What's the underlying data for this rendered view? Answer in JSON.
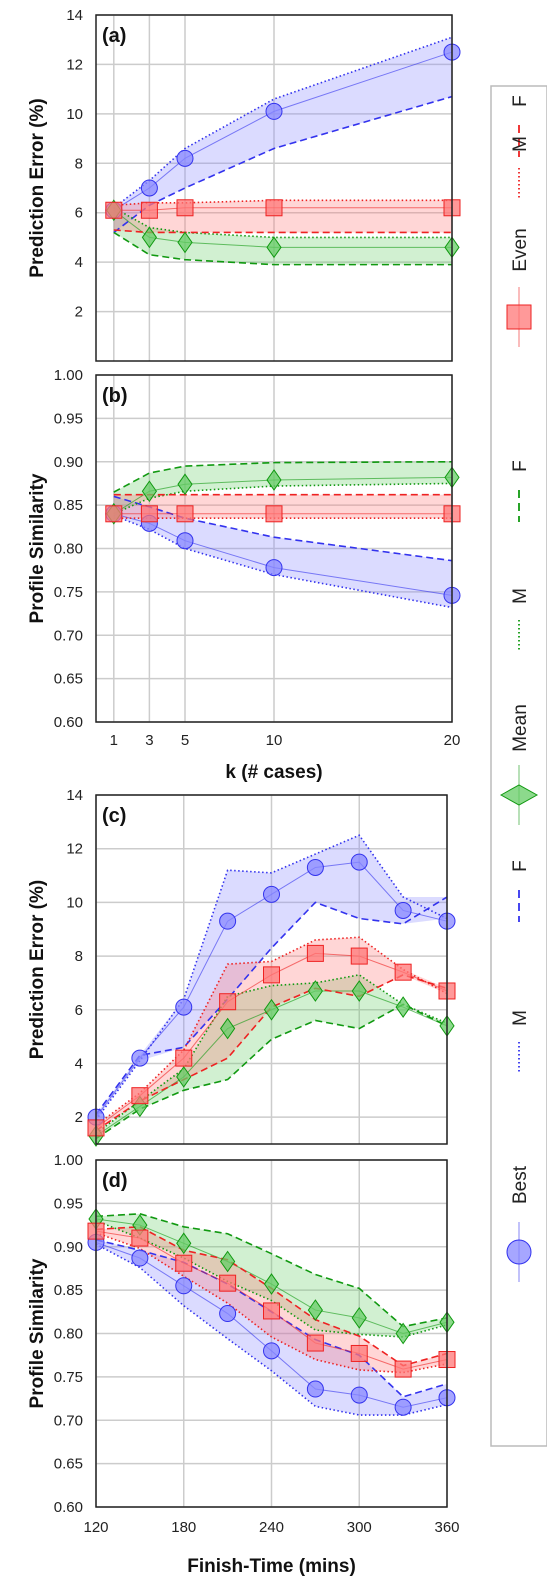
{
  "colors": {
    "best": "#3333ee",
    "best_fill": "#8888ff",
    "mean": "#119911",
    "mean_fill": "#66cc66",
    "even": "#ee2222",
    "even_fill": "#ff7777",
    "grid": "#cccccc",
    "axis": "#222222"
  },
  "legend": {
    "placement": "right-vertical",
    "entries": [
      {
        "key": "F",
        "style": "dashed",
        "group": "even"
      },
      {
        "key": "M",
        "style": "dotted",
        "group": "even"
      },
      {
        "key": "Even",
        "style": "square",
        "group": "even"
      },
      {
        "key": "F",
        "style": "dashed",
        "group": "mean"
      },
      {
        "key": "M",
        "style": "dotted",
        "group": "mean"
      },
      {
        "key": "Mean",
        "style": "diamond",
        "group": "mean"
      },
      {
        "key": "F",
        "style": "dashed",
        "group": "best"
      },
      {
        "key": "M",
        "style": "dotted",
        "group": "best"
      },
      {
        "key": "Best",
        "style": "circle",
        "group": "best"
      }
    ]
  },
  "chart_data": [
    {
      "panel_label": "(a)",
      "type": "line",
      "ylabel": "Prediction Error (%)",
      "xlabel": "",
      "xlim": [
        0,
        20
      ],
      "ylim": [
        0,
        14
      ],
      "x_ticks": [],
      "y_ticks": [
        2,
        4,
        6,
        8,
        10,
        12,
        14
      ],
      "x_gridlines": [
        1,
        3,
        5,
        10,
        20
      ],
      "x": [
        1,
        3,
        5,
        10,
        20
      ],
      "series": [
        {
          "group": "best",
          "marker": "circle",
          "mean": [
            6.1,
            7.0,
            8.2,
            10.1,
            12.5
          ],
          "F": [
            5.2,
            6.3,
            7.0,
            8.6,
            10.7
          ],
          "M": [
            6.2,
            7.3,
            8.6,
            10.6,
            13.1
          ]
        },
        {
          "group": "mean",
          "marker": "diamond",
          "mean": [
            6.1,
            5.0,
            4.8,
            4.6,
            4.6
          ],
          "F": [
            5.2,
            4.3,
            4.1,
            3.9,
            3.9
          ],
          "M": [
            6.2,
            5.4,
            5.2,
            5.0,
            5.0
          ]
        },
        {
          "group": "even",
          "marker": "square",
          "mean": [
            6.1,
            6.1,
            6.2,
            6.2,
            6.2
          ],
          "F": [
            5.3,
            5.2,
            5.2,
            5.2,
            5.2
          ],
          "M": [
            6.3,
            6.4,
            6.4,
            6.5,
            6.5
          ]
        }
      ]
    },
    {
      "panel_label": "(b)",
      "type": "line",
      "ylabel": "Profile Similarity",
      "xlabel": "k (# cases)",
      "xlim": [
        0,
        20
      ],
      "ylim": [
        0.6,
        1.0
      ],
      "x_ticks": [
        1,
        3,
        5,
        10,
        20
      ],
      "y_ticks": [
        "0.60",
        "0.65",
        "0.70",
        "0.75",
        "0.80",
        "0.85",
        "0.90",
        "0.95",
        "1.00"
      ],
      "x_gridlines": [
        1,
        3,
        5,
        10,
        20
      ],
      "x": [
        1,
        3,
        5,
        10,
        20
      ],
      "series": [
        {
          "group": "best",
          "marker": "circle",
          "mean": [
            0.84,
            0.829,
            0.809,
            0.778,
            0.746
          ],
          "F": [
            0.86,
            0.848,
            0.835,
            0.813,
            0.786
          ],
          "M": [
            0.838,
            0.822,
            0.8,
            0.77,
            0.732
          ]
        },
        {
          "group": "mean",
          "marker": "diamond",
          "mean": [
            0.84,
            0.866,
            0.874,
            0.879,
            0.882
          ],
          "F": [
            0.865,
            0.887,
            0.895,
            0.899,
            0.9
          ],
          "M": [
            0.84,
            0.858,
            0.866,
            0.872,
            0.875
          ]
        },
        {
          "group": "even",
          "marker": "square",
          "mean": [
            0.84,
            0.84,
            0.84,
            0.84,
            0.84
          ],
          "F": [
            0.862,
            0.862,
            0.862,
            0.862,
            0.862
          ],
          "M": [
            0.835,
            0.835,
            0.835,
            0.835,
            0.835
          ]
        }
      ]
    },
    {
      "panel_label": "(c)",
      "type": "line",
      "ylabel": "Prediction Error (%)",
      "xlabel": "",
      "xlim": [
        120,
        360
      ],
      "ylim": [
        1,
        14
      ],
      "x_ticks": [],
      "y_ticks": [
        2,
        4,
        6,
        8,
        10,
        12,
        14
      ],
      "x_gridlines": [
        120,
        180,
        240,
        300,
        360
      ],
      "x": [
        120,
        150,
        180,
        210,
        240,
        270,
        300,
        330,
        360
      ],
      "series": [
        {
          "group": "best",
          "marker": "circle",
          "mean": [
            2.0,
            4.2,
            6.1,
            9.3,
            10.3,
            11.3,
            11.5,
            9.7,
            9.3
          ],
          "F": [
            2.1,
            4.3,
            4.6,
            6.4,
            8.3,
            10.0,
            9.4,
            9.2,
            10.2
          ],
          "M": [
            1.9,
            4.1,
            6.4,
            11.2,
            11.1,
            11.8,
            12.5,
            10.2,
            9.4
          ]
        },
        {
          "group": "mean",
          "marker": "diamond",
          "mean": [
            1.3,
            2.4,
            3.5,
            5.3,
            6.0,
            6.7,
            6.7,
            6.1,
            5.4
          ],
          "F": [
            1.2,
            2.3,
            3.0,
            3.4,
            4.9,
            5.6,
            5.3,
            6.2,
            5.4
          ],
          "M": [
            1.4,
            2.6,
            3.8,
            6.5,
            6.9,
            7.0,
            7.3,
            6.2,
            5.5
          ]
        },
        {
          "group": "even",
          "marker": "square",
          "mean": [
            1.6,
            2.8,
            4.2,
            6.3,
            7.3,
            8.1,
            8.0,
            7.4,
            6.7
          ],
          "F": [
            1.5,
            2.6,
            3.4,
            4.2,
            6.1,
            6.8,
            6.5,
            7.3,
            6.8
          ],
          "M": [
            1.7,
            2.9,
            4.5,
            7.7,
            7.8,
            8.6,
            8.7,
            7.5,
            6.6
          ]
        }
      ]
    },
    {
      "panel_label": "(d)",
      "type": "line",
      "ylabel": "Profile Similarity",
      "xlabel": "Finish-Time (mins)",
      "xlim": [
        120,
        360
      ],
      "ylim": [
        0.6,
        1.0
      ],
      "x_ticks": [
        120,
        180,
        240,
        300,
        360
      ],
      "y_ticks": [
        "0.60",
        "0.65",
        "0.70",
        "0.75",
        "0.80",
        "0.85",
        "0.90",
        "0.95",
        "1.00"
      ],
      "x_gridlines": [
        120,
        180,
        240,
        300,
        360
      ],
      "x": [
        120,
        150,
        180,
        210,
        240,
        270,
        300,
        330,
        360
      ],
      "series": [
        {
          "group": "best",
          "marker": "circle",
          "mean": [
            0.905,
            0.887,
            0.855,
            0.823,
            0.78,
            0.736,
            0.729,
            0.715,
            0.726
          ],
          "F": [
            0.908,
            0.896,
            0.882,
            0.857,
            0.825,
            0.793,
            0.775,
            0.727,
            0.742
          ],
          "M": [
            0.903,
            0.876,
            0.832,
            0.794,
            0.757,
            0.716,
            0.706,
            0.706,
            0.718
          ]
        },
        {
          "group": "mean",
          "marker": "diamond",
          "mean": [
            0.932,
            0.925,
            0.904,
            0.883,
            0.857,
            0.827,
            0.818,
            0.8,
            0.813
          ],
          "F": [
            0.935,
            0.938,
            0.923,
            0.915,
            0.892,
            0.868,
            0.852,
            0.808,
            0.818
          ],
          "M": [
            0.93,
            0.91,
            0.887,
            0.86,
            0.838,
            0.804,
            0.799,
            0.796,
            0.81
          ]
        },
        {
          "group": "even",
          "marker": "square",
          "mean": [
            0.918,
            0.91,
            0.881,
            0.858,
            0.826,
            0.789,
            0.777,
            0.759,
            0.77
          ],
          "F": [
            0.92,
            0.923,
            0.896,
            0.885,
            0.852,
            0.816,
            0.797,
            0.763,
            0.777
          ],
          "M": [
            0.916,
            0.898,
            0.866,
            0.835,
            0.796,
            0.77,
            0.758,
            0.755,
            0.765
          ]
        }
      ]
    }
  ]
}
